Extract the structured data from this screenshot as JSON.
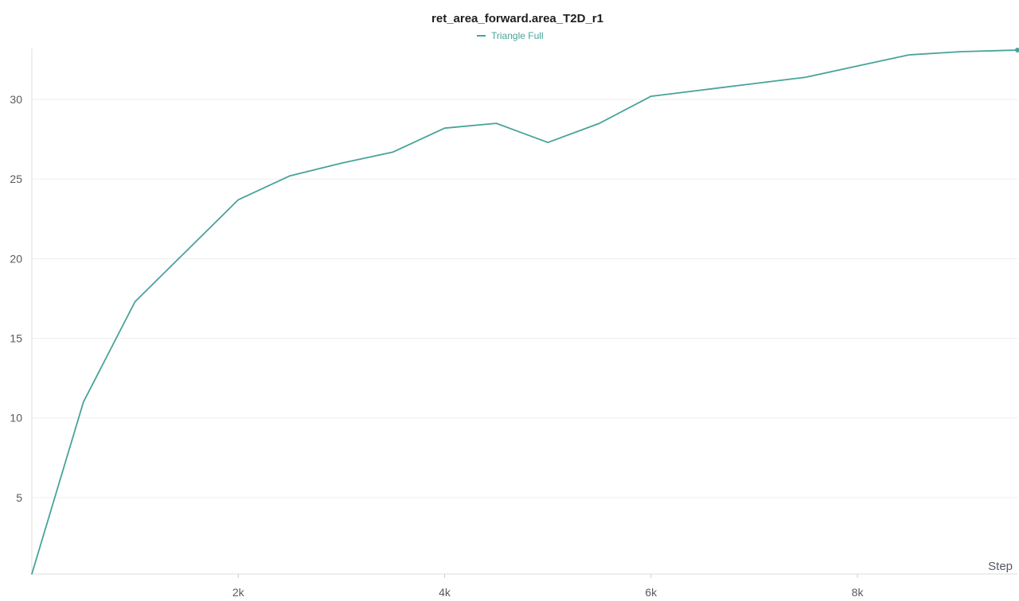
{
  "chart_data": {
    "type": "line",
    "title": "ret_area_forward.area_T2D_r1",
    "xlabel": "Step",
    "ylabel": "",
    "x_tick_labels": [
      "2k",
      "4k",
      "6k",
      "8k"
    ],
    "x_ticks": [
      2000,
      4000,
      6000,
      8000
    ],
    "y_tick_labels": [
      "5",
      "10",
      "15",
      "20",
      "25",
      "30"
    ],
    "y_ticks": [
      5,
      10,
      15,
      20,
      25,
      30
    ],
    "xlim": [
      0,
      9550
    ],
    "ylim": [
      0.2,
      33.2
    ],
    "grid": true,
    "legend_position": "top-center",
    "series": [
      {
        "name": "Triangle Full",
        "color": "#48a39a",
        "x": [
          0,
          500,
          1000,
          1500,
          2000,
          2500,
          3000,
          3500,
          4000,
          4500,
          5000,
          5500,
          6000,
          6500,
          7000,
          7500,
          8000,
          8500,
          9000,
          9550
        ],
        "y": [
          0.2,
          11.0,
          17.3,
          20.5,
          23.7,
          25.2,
          26.0,
          26.7,
          28.2,
          28.5,
          27.3,
          28.5,
          30.2,
          30.6,
          31.0,
          31.4,
          32.1,
          32.8,
          33.0,
          33.1
        ]
      }
    ]
  }
}
